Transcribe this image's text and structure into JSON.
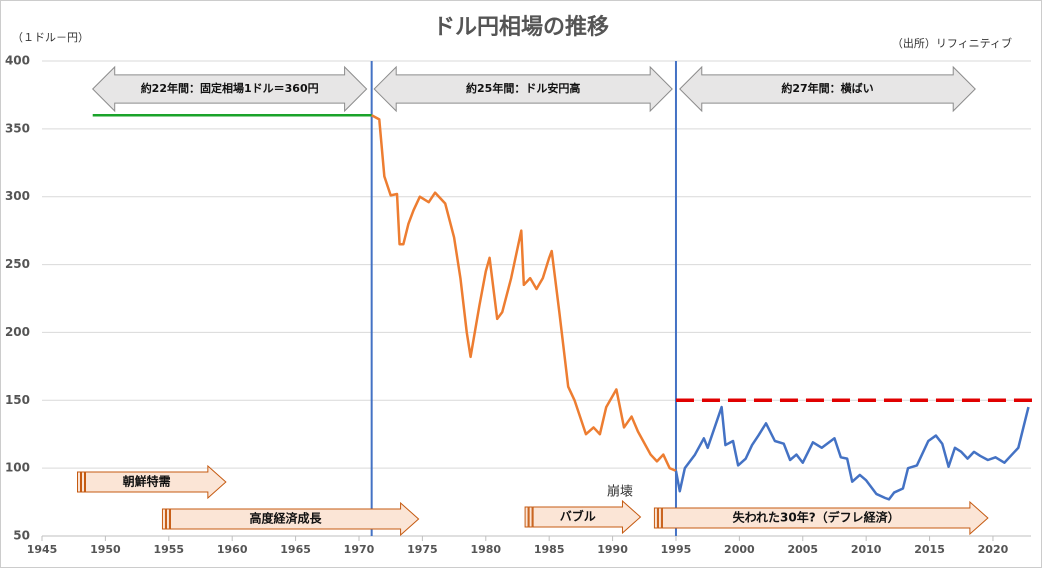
{
  "chart_data": {
    "type": "line",
    "title": "ドル円相場の推移",
    "y_label": "（１ドル－円）",
    "source": "（出所）リフィニティブ",
    "xlim": [
      1945,
      2023
    ],
    "ylim": [
      50,
      400
    ],
    "xticks": [
      1945,
      1950,
      1955,
      1960,
      1965,
      1970,
      1975,
      1980,
      1985,
      1990,
      1995,
      2000,
      2005,
      2010,
      2015,
      2020
    ],
    "yticks": [
      50,
      100,
      150,
      200,
      250,
      300,
      350,
      400
    ],
    "grid": true,
    "series": [
      {
        "color": "#1aa32a",
        "x": [
          1949,
          1971
        ],
        "values": [
          360,
          360
        ]
      },
      {
        "color": "#ed7d31",
        "x": [
          1971.0,
          1971.6,
          1972.0,
          1972.5,
          1973.0,
          1973.2,
          1973.5,
          1973.9,
          1974.3,
          1974.8,
          1975.5,
          1976.0,
          1976.8,
          1977.5,
          1978.0,
          1978.5,
          1978.8,
          1979.5,
          1980.0,
          1980.3,
          1980.9,
          1981.3,
          1982.0,
          1982.8,
          1983.0,
          1983.5,
          1984.0,
          1984.5,
          1985.0,
          1985.2,
          1985.8,
          1986.5,
          1987.0,
          1987.9,
          1988.5,
          1989.0,
          1989.5,
          1990.3,
          1990.9,
          1991.5,
          1992.0,
          1993.0,
          1993.5,
          1994.0,
          1994.5,
          1995.0
        ],
        "values": [
          360,
          357,
          315,
          301,
          302,
          265,
          265,
          280,
          290,
          300,
          296,
          303,
          295,
          270,
          240,
          200,
          182,
          220,
          245,
          255,
          210,
          215,
          240,
          275,
          235,
          240,
          232,
          240,
          255,
          260,
          215,
          160,
          150,
          125,
          130,
          125,
          145,
          158,
          130,
          138,
          127,
          110,
          105,
          110,
          100,
          98
        ]
      },
      {
        "color": "#4472c4",
        "x": [
          1995.0,
          1995.3,
          1995.7,
          1996.5,
          1997.2,
          1997.5,
          1998.6,
          1998.9,
          1999.5,
          1999.9,
          2000.5,
          2001.0,
          2001.5,
          2002.1,
          2002.8,
          2003.5,
          2004.0,
          2004.5,
          2005.0,
          2005.8,
          2006.5,
          2007.5,
          2008.0,
          2008.5,
          2008.9,
          2009.5,
          2010.0,
          2010.8,
          2011.5,
          2011.8,
          2012.2,
          2012.9,
          2013.3,
          2014.0,
          2014.9,
          2015.5,
          2016.0,
          2016.5,
          2017.0,
          2017.5,
          2018.0,
          2018.5,
          2019.0,
          2019.6,
          2020.2,
          2020.9,
          2021.5,
          2022.0,
          2022.4,
          2022.8
        ],
        "values": [
          98,
          83,
          100,
          110,
          122,
          115,
          145,
          117,
          120,
          102,
          107,
          117,
          124,
          133,
          120,
          118,
          106,
          110,
          104,
          119,
          115,
          122,
          108,
          107,
          90,
          95,
          91,
          81,
          78,
          77,
          82,
          85,
          100,
          102,
          120,
          124,
          118,
          101,
          115,
          112,
          107,
          112,
          109,
          106,
          108,
          104,
          110,
          115,
          130,
          145
        ]
      }
    ],
    "vlines": {
      "values": [
        1971,
        1995
      ],
      "color": "#4472c4"
    },
    "hline": {
      "value": 150,
      "from": 1995,
      "color": "#e00000"
    },
    "period_arrows": [
      {
        "text": "約22年間：固定相場1ドル＝360円",
        "from": 1949,
        "to": 1970.6
      },
      {
        "text": "約25年間：ドル安円高",
        "from": 1971.2,
        "to": 1994.7
      },
      {
        "text": "約27年間：横ばい",
        "from": 1995.3,
        "to": 2018.6
      }
    ],
    "event_arrows": [
      {
        "text": "朝鮮特需",
        "from": 1947.8,
        "to": 1959.5
      },
      {
        "text": "高度経済成長",
        "from": 1954.5,
        "to": 1974.7
      },
      {
        "text": "バブル",
        "from": 1983.1,
        "to": 1992.2
      },
      {
        "text": "失われた30年?（デフレ経済）",
        "from": 1993.3,
        "to": 2019.6
      }
    ],
    "note": "崩壊"
  }
}
